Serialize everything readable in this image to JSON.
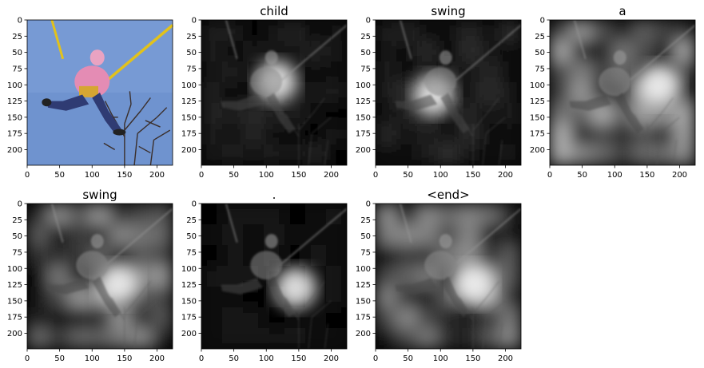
{
  "chart_data": [
    {
      "type": "heatmap",
      "title": "",
      "xlim": [
        0,
        224
      ],
      "ylim": [
        224,
        0
      ],
      "xticks": [
        0,
        50,
        100,
        150,
        200
      ],
      "yticks": [
        0,
        25,
        50,
        75,
        100,
        125,
        150,
        175,
        200
      ],
      "content": "photo",
      "photo_colors": {
        "sky": "#6f93cf",
        "rope": "#e2c21b",
        "jacket": "#e48cb4",
        "pants": "#2f3b73",
        "branches": "#3b2f2b"
      }
    },
    {
      "type": "heatmap",
      "title": "child",
      "xlim": [
        0,
        224
      ],
      "ylim": [
        224,
        0
      ],
      "xticks": [
        0,
        50,
        100,
        150,
        200
      ],
      "yticks": [
        0,
        25,
        50,
        75,
        100,
        125,
        150,
        175,
        200
      ],
      "content": "attention",
      "attention_peak": {
        "x": 115,
        "y": 95
      },
      "background_level": 0.08
    },
    {
      "type": "heatmap",
      "title": "swing",
      "xlim": [
        0,
        224
      ],
      "ylim": [
        224,
        0
      ],
      "xticks": [
        0,
        50,
        100,
        150,
        200
      ],
      "yticks": [
        0,
        25,
        50,
        75,
        100,
        125,
        150,
        175,
        200
      ],
      "content": "attention",
      "attention_peak": {
        "x": 90,
        "y": 115
      },
      "background_level": 0.1
    },
    {
      "type": "heatmap",
      "title": "a",
      "xlim": [
        0,
        224
      ],
      "ylim": [
        224,
        0
      ],
      "xticks": [
        0,
        50,
        100,
        150,
        200
      ],
      "yticks": [
        0,
        25,
        50,
        75,
        100,
        125,
        150,
        175,
        200
      ],
      "content": "attention",
      "attention_peak": {
        "x": 170,
        "y": 100
      },
      "background_level": 0.35
    },
    {
      "type": "heatmap",
      "title": "swing",
      "xlim": [
        0,
        224
      ],
      "ylim": [
        224,
        0
      ],
      "xticks": [
        0,
        50,
        100,
        150,
        200
      ],
      "yticks": [
        0,
        25,
        50,
        75,
        100,
        125,
        150,
        175,
        200
      ],
      "content": "attention",
      "attention_peak": {
        "x": 140,
        "y": 125
      },
      "background_level": 0.3
    },
    {
      "type": "heatmap",
      "title": ".",
      "xlim": [
        0,
        224
      ],
      "ylim": [
        224,
        0
      ],
      "xticks": [
        0,
        50,
        100,
        150,
        200
      ],
      "yticks": [
        0,
        25,
        50,
        75,
        100,
        125,
        150,
        175,
        200
      ],
      "content": "attention",
      "attention_peak": {
        "x": 145,
        "y": 130
      },
      "background_level": 0.05
    },
    {
      "type": "heatmap",
      "title": "<end>",
      "xlim": [
        0,
        224
      ],
      "ylim": [
        224,
        0
      ],
      "xticks": [
        0,
        50,
        100,
        150,
        200
      ],
      "yticks": [
        0,
        25,
        50,
        75,
        100,
        125,
        150,
        175,
        200
      ],
      "content": "attention",
      "attention_peak": {
        "x": 150,
        "y": 125
      },
      "background_level": 0.3
    }
  ]
}
